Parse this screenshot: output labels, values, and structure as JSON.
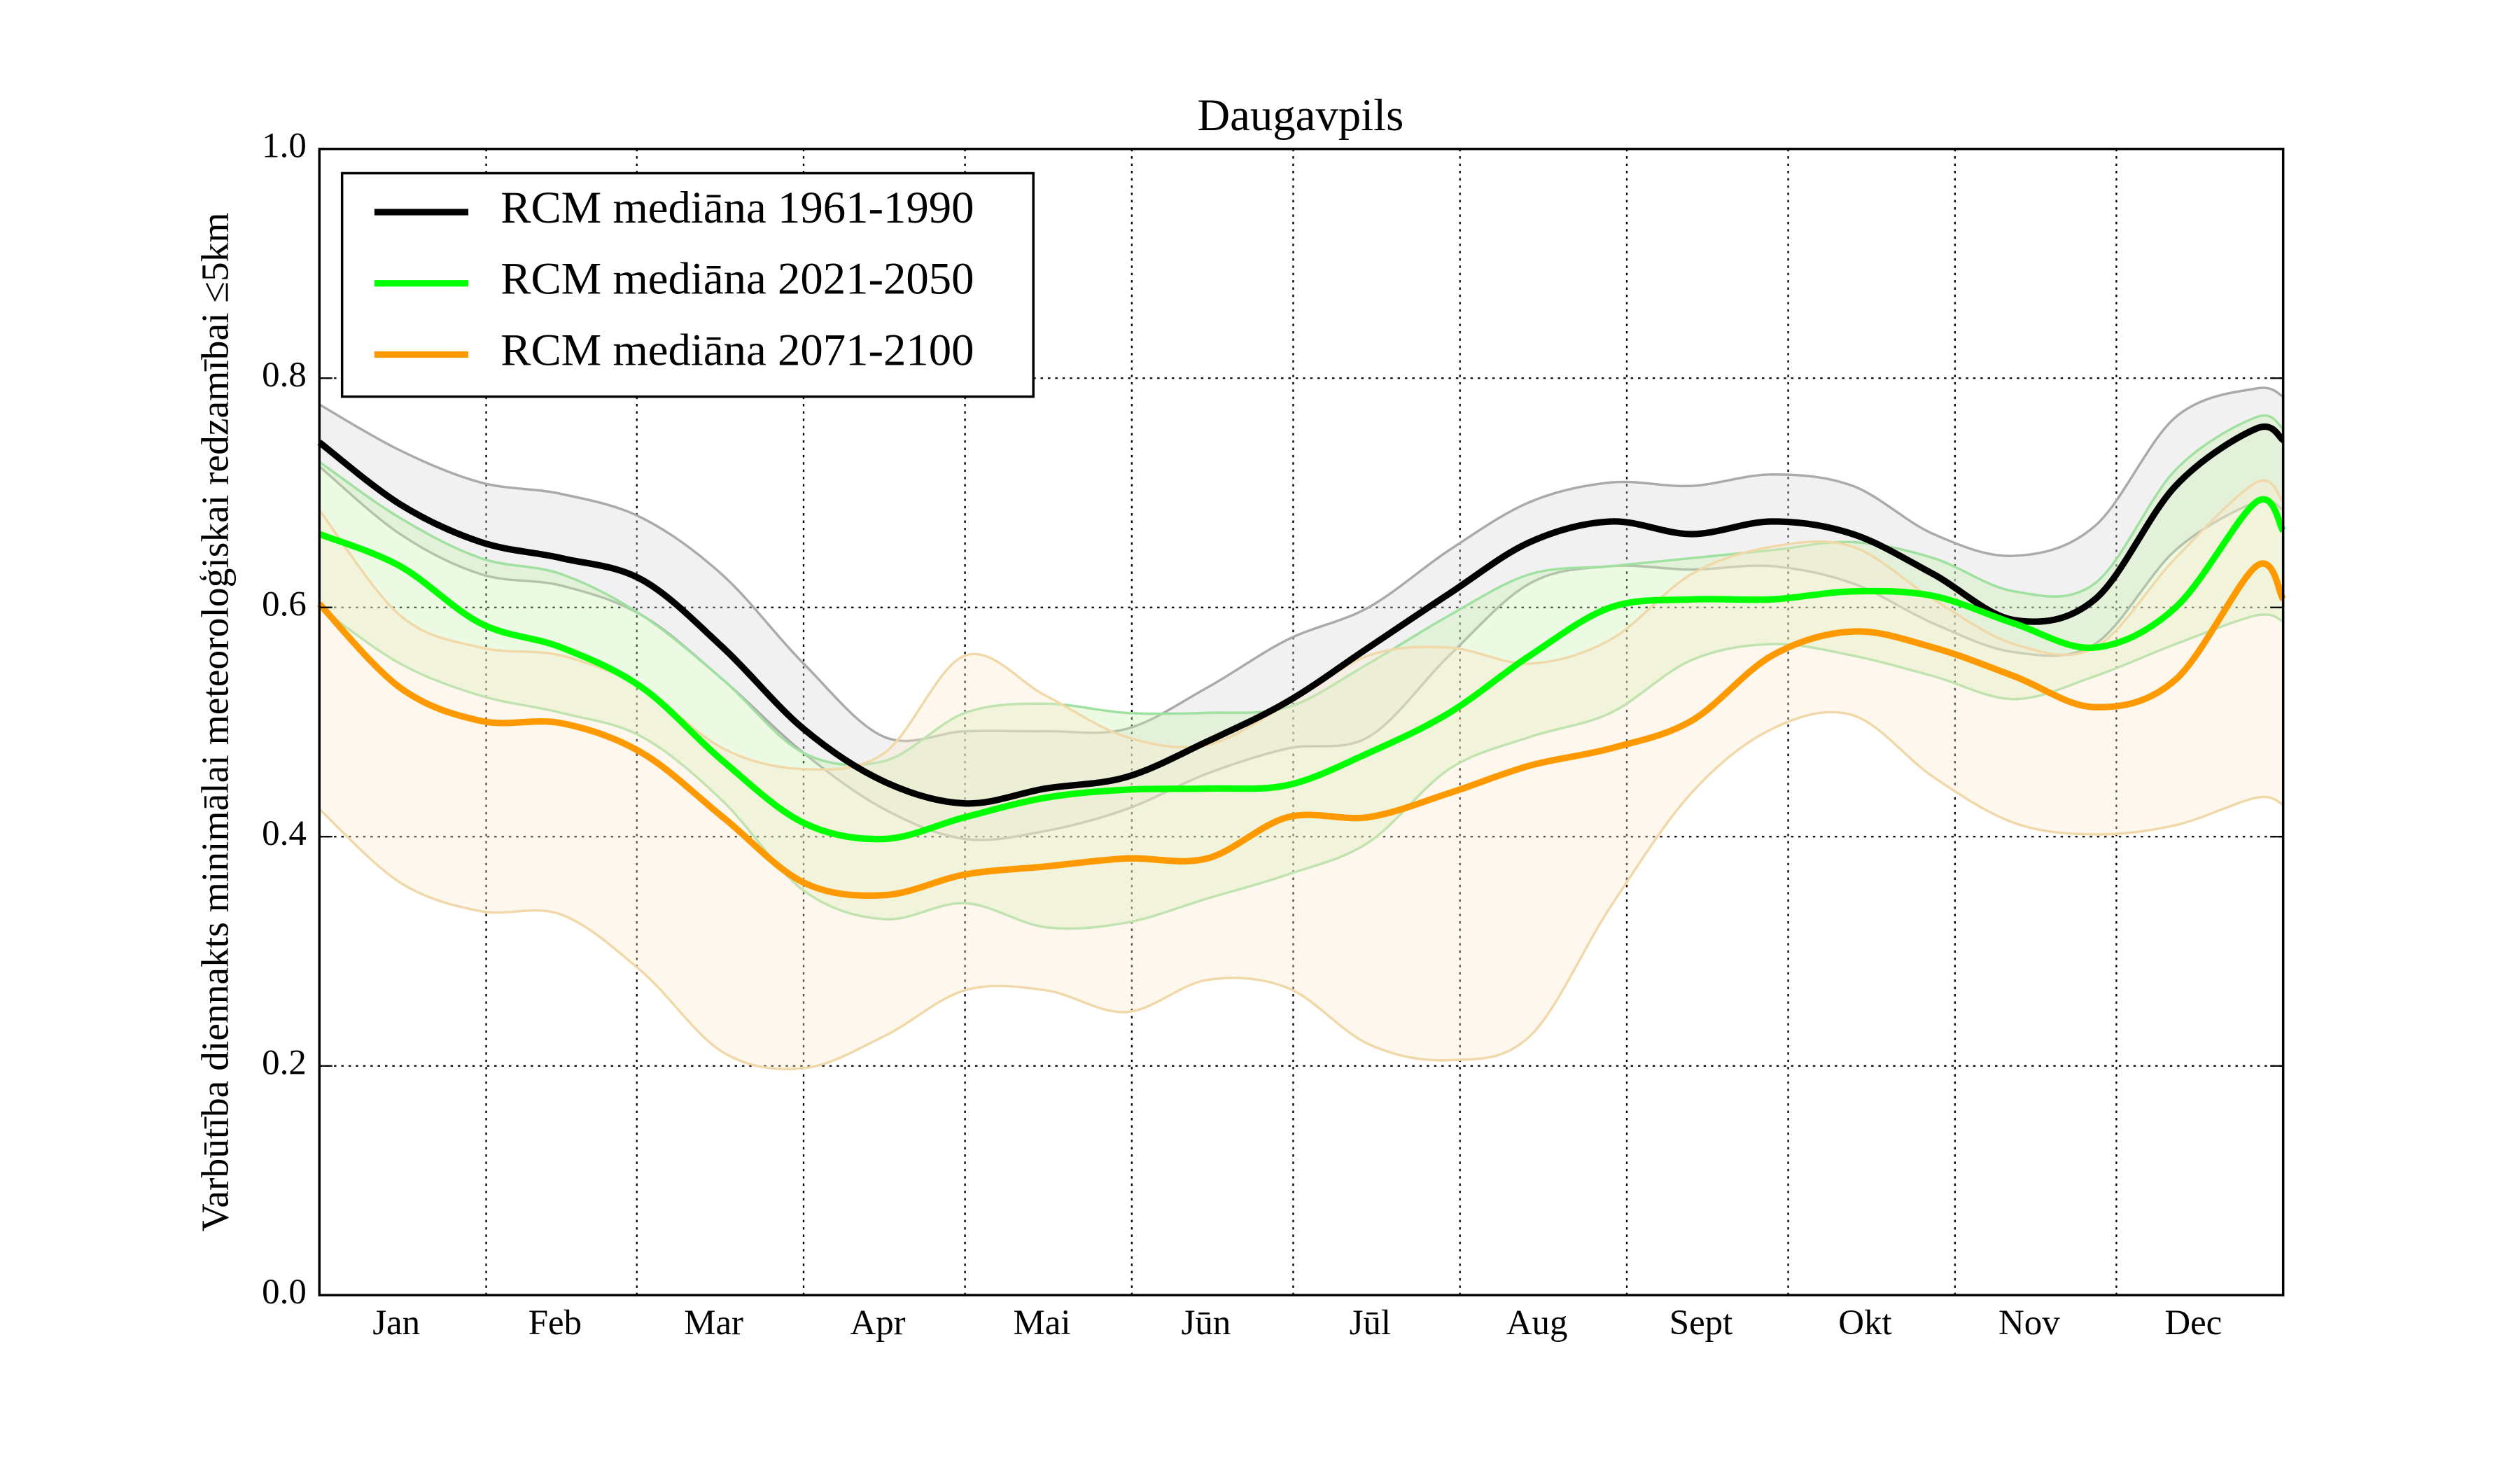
{
  "chart_data": {
    "type": "line",
    "title": "Daugavpils",
    "ylabel": "Varbūtība diennakts minimālai meteoroloģiskai redzamībai ≤5km",
    "x": [
      0,
      15,
      30,
      45,
      60,
      75,
      90,
      105,
      120,
      135,
      150,
      165,
      180,
      195,
      210,
      225,
      240,
      255,
      270,
      285,
      300,
      315,
      330,
      345,
      360,
      365
    ],
    "xlim": [
      0,
      365
    ],
    "xticks": [
      {
        "value": 15.5,
        "label": "Jan"
      },
      {
        "value": 45,
        "label": "Feb"
      },
      {
        "value": 74.5,
        "label": "Mar"
      },
      {
        "value": 105,
        "label": "Apr"
      },
      {
        "value": 135.5,
        "label": "Mai"
      },
      {
        "value": 166,
        "label": "Jūn"
      },
      {
        "value": 196.5,
        "label": "Jūl"
      },
      {
        "value": 227.5,
        "label": "Aug"
      },
      {
        "value": 258,
        "label": "Sept"
      },
      {
        "value": 288.5,
        "label": "Okt"
      },
      {
        "value": 319,
        "label": "Nov"
      },
      {
        "value": 349.5,
        "label": "Dec"
      }
    ],
    "xgrid": [
      31,
      59,
      90,
      120,
      151,
      181,
      212,
      243,
      273,
      304,
      334
    ],
    "ylim": [
      0,
      1
    ],
    "yticks": [
      {
        "value": 0,
        "label": "0.0"
      },
      0.2,
      0.4,
      0.6,
      0.8,
      {
        "value": 1,
        "label": "1.0"
      }
    ],
    "grid": true,
    "legend": "upper left",
    "series": [
      {
        "name": "RCM mediāna 1961-1990",
        "color": "#000000",
        "band_color": "#d8d8d8",
        "edge_color": "#aaaaaa",
        "values": [
          0.744,
          0.69,
          0.657,
          0.643,
          0.624,
          0.565,
          0.494,
          0.448,
          0.429,
          0.442,
          0.452,
          0.483,
          0.518,
          0.565,
          0.612,
          0.657,
          0.675,
          0.664,
          0.675,
          0.664,
          0.629,
          0.589,
          0.607,
          0.706,
          0.756,
          0.746
        ],
        "upper": [
          0.777,
          0.737,
          0.709,
          0.699,
          0.678,
          0.628,
          0.551,
          0.487,
          0.492,
          0.492,
          0.494,
          0.53,
          0.572,
          0.6,
          0.65,
          0.692,
          0.709,
          0.706,
          0.716,
          0.706,
          0.664,
          0.645,
          0.671,
          0.766,
          0.791,
          0.784
        ],
        "lower": [
          0.723,
          0.664,
          0.629,
          0.619,
          0.593,
          0.537,
          0.473,
          0.424,
          0.398,
          0.405,
          0.424,
          0.455,
          0.477,
          0.487,
          0.558,
          0.621,
          0.636,
          0.633,
          0.636,
          0.621,
          0.586,
          0.561,
          0.568,
          0.65,
          0.692,
          0.685
        ]
      },
      {
        "name": "RCM mediāna 2021-2050",
        "color": "#00ff00",
        "band_color": "#c8f0b0",
        "edge_color": "#a0e0a0",
        "values": [
          0.664,
          0.636,
          0.586,
          0.565,
          0.53,
          0.466,
          0.412,
          0.398,
          0.417,
          0.434,
          0.441,
          0.442,
          0.445,
          0.473,
          0.508,
          0.558,
          0.6,
          0.607,
          0.607,
          0.614,
          0.61,
          0.586,
          0.565,
          0.6,
          0.692,
          0.667
        ],
        "upper": [
          0.727,
          0.678,
          0.643,
          0.629,
          0.593,
          0.537,
          0.473,
          0.466,
          0.508,
          0.516,
          0.508,
          0.508,
          0.513,
          0.551,
          0.593,
          0.629,
          0.636,
          0.643,
          0.65,
          0.657,
          0.643,
          0.614,
          0.621,
          0.72,
          0.766,
          0.756
        ],
        "lower": [
          0.6,
          0.551,
          0.523,
          0.508,
          0.487,
          0.431,
          0.353,
          0.328,
          0.342,
          0.321,
          0.325,
          0.346,
          0.367,
          0.395,
          0.459,
          0.487,
          0.508,
          0.554,
          0.568,
          0.558,
          0.54,
          0.52,
          0.54,
          0.568,
          0.593,
          0.588
        ]
      },
      {
        "name": "RCM mediāna 2071-2100",
        "color": "#ff9900",
        "band_color": "#fde8cc",
        "edge_color": "#f0d8a8",
        "values": [
          0.603,
          0.53,
          0.501,
          0.499,
          0.473,
          0.417,
          0.36,
          0.349,
          0.367,
          0.374,
          0.381,
          0.381,
          0.417,
          0.417,
          0.438,
          0.462,
          0.477,
          0.501,
          0.558,
          0.579,
          0.565,
          0.54,
          0.513,
          0.537,
          0.636,
          0.607
        ],
        "upper": [
          0.685,
          0.593,
          0.565,
          0.558,
          0.53,
          0.477,
          0.459,
          0.473,
          0.558,
          0.523,
          0.487,
          0.48,
          0.516,
          0.558,
          0.565,
          0.551,
          0.572,
          0.629,
          0.653,
          0.653,
          0.607,
          0.568,
          0.565,
          0.643,
          0.709,
          0.692
        ],
        "lower": [
          0.424,
          0.36,
          0.335,
          0.332,
          0.282,
          0.212,
          0.198,
          0.226,
          0.266,
          0.266,
          0.247,
          0.275,
          0.268,
          0.219,
          0.205,
          0.226,
          0.339,
          0.438,
          0.494,
          0.506,
          0.452,
          0.412,
          0.402,
          0.41,
          0.434,
          0.428
        ]
      }
    ]
  }
}
